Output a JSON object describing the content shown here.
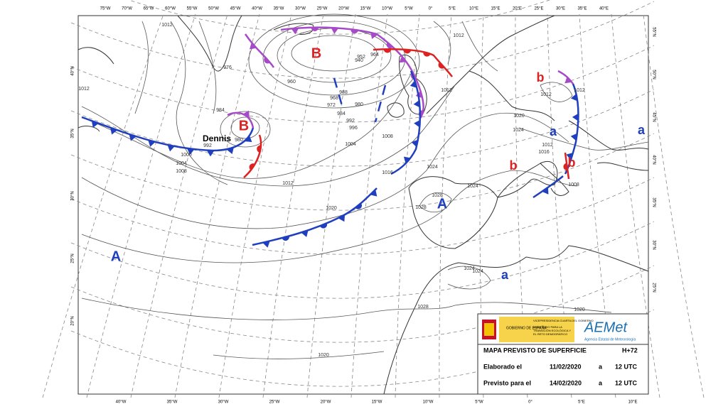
{
  "map": {
    "top_longitudes": [
      "75°W",
      "70°W",
      "65°W",
      "60°W",
      "55°W",
      "50°W",
      "45°W",
      "40°W",
      "35°W",
      "30°W",
      "25°W",
      "20°W",
      "15°W",
      "10°W",
      "5°W",
      "0°",
      "5°E",
      "10°E",
      "15°E",
      "20°E",
      "25°E",
      "30°E",
      "35°E",
      "40°E"
    ],
    "bottom_longitudes": [
      "40°W",
      "35°W",
      "30°W",
      "25°W",
      "20°W",
      "15°W",
      "10°W",
      "5°W",
      "0°",
      "5°E",
      "10°E"
    ],
    "left_latitudes": [
      "40°N",
      "35°N",
      "30°N",
      "25°N",
      "20°N"
    ],
    "right_latitudes": [
      "55°N",
      "50°N",
      "45°N",
      "40°N",
      "35°N",
      "30°N",
      "25°N"
    ],
    "systems": [
      "B",
      "B",
      "A",
      "A",
      "a",
      "a",
      "a",
      "b",
      "b",
      "b",
      "b"
    ],
    "storm_name": "Dennis",
    "isobar_labels": [
      "1012",
      "1012",
      "1012",
      "1012",
      "976",
      "984",
      "980",
      "992",
      "1000",
      "1004",
      "1008",
      "1012",
      "960",
      "988",
      "980",
      "984",
      "992",
      "996",
      "1004",
      "1008",
      "1016",
      "1020",
      "1024",
      "1028",
      "1028",
      "1024",
      "1020",
      "1024",
      "1016",
      "1012",
      "1012",
      "1012",
      "1008",
      "1024",
      "1024",
      "1028",
      "1020",
      "1020",
      "940",
      "952",
      "964",
      "968",
      "972"
    ]
  },
  "legend": {
    "government": "GOBIERNO DE ESPAÑA",
    "vice": "VICEPRESIDENCIA CUARTA DEL GOBIERNO",
    "ministry": "MINISTERIO PARA LA TRANSICIÓN ECOLÓGICA Y EL RETO DEMOGRÁFICO",
    "agency_logo": "AEMet",
    "agency": "Agencia Estatal de Meteorología",
    "title": "MAPA PREVISTO DE SUPERFICIE",
    "lead": "H+72",
    "rows": [
      [
        "Elaborado el",
        "11/02/2020",
        "a",
        "12 UTC"
      ],
      [
        "Previsto para el",
        "14/02/2020",
        "a",
        "12 UTC"
      ]
    ]
  }
}
